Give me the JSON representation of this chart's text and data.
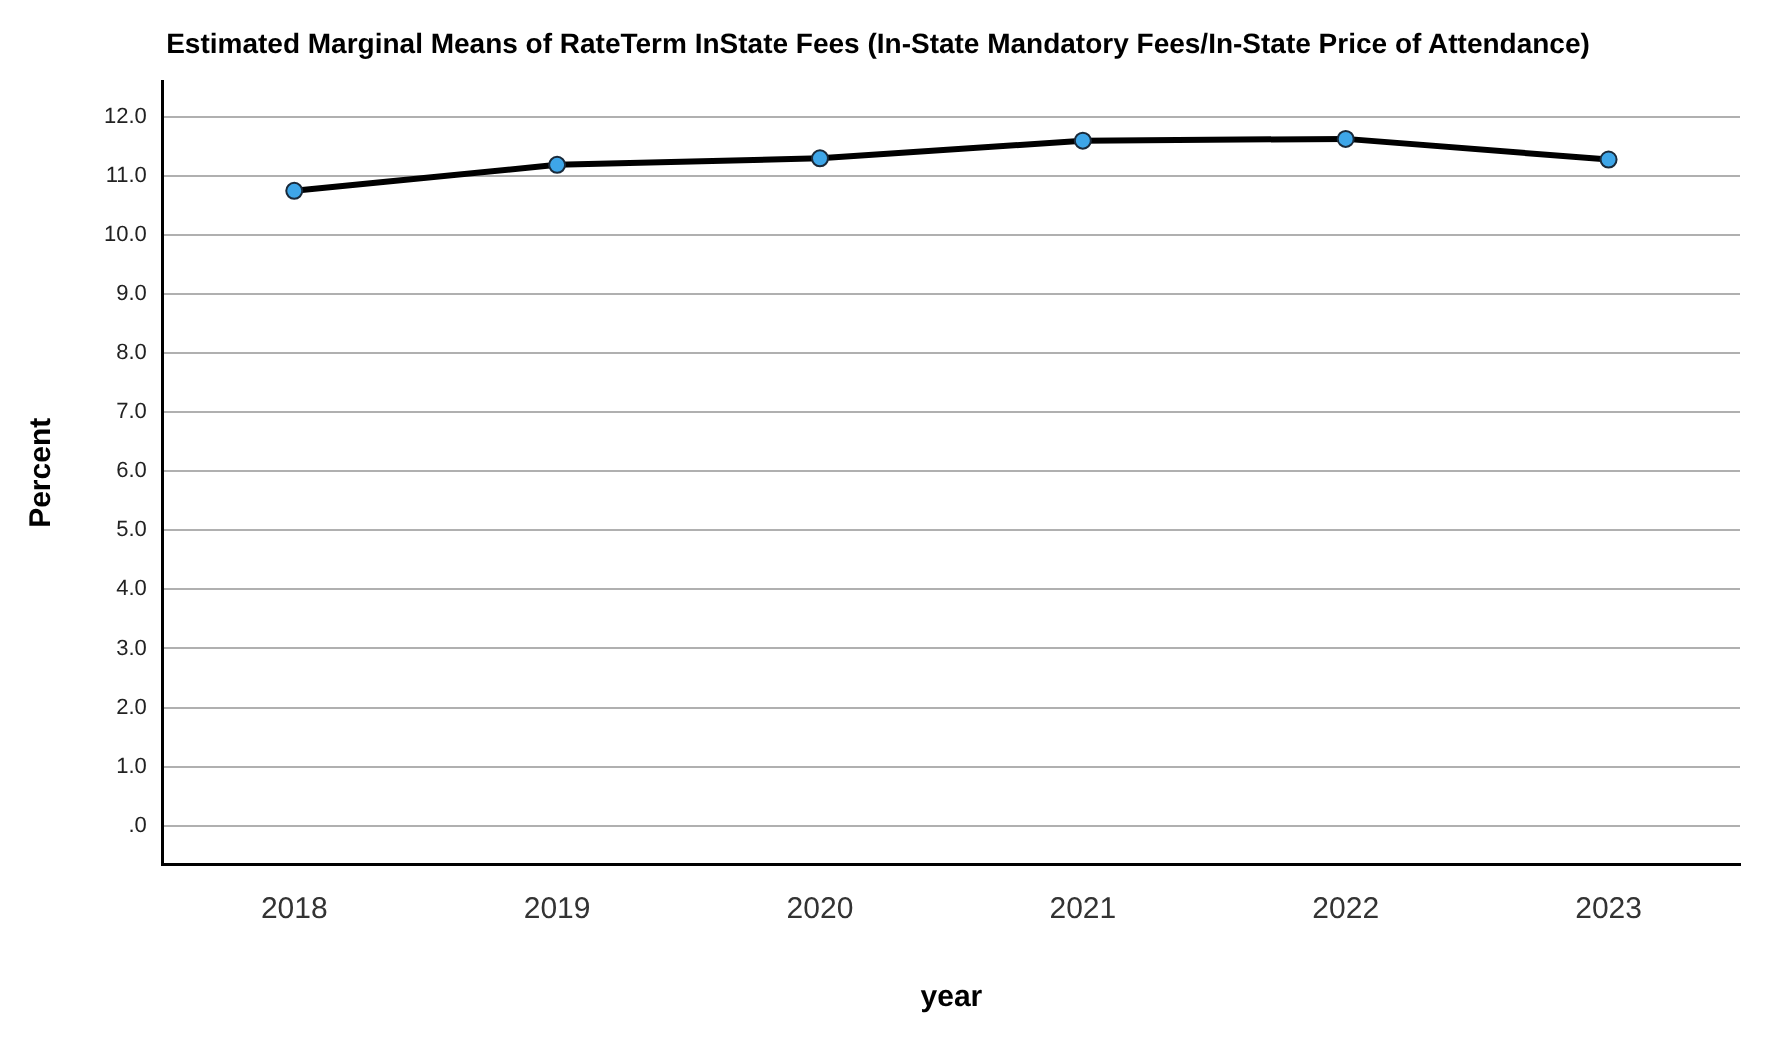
{
  "chart_data": {
    "type": "line",
    "title": "Estimated Marginal Means of RateTerm InState Fees (In-State Mandatory Fees/In-State Price of Attendance)",
    "xlabel": "year",
    "ylabel": "Percent",
    "categories": [
      "2018",
      "2019",
      "2020",
      "2021",
      "2022",
      "2023"
    ],
    "series": [
      {
        "color": "#000000",
        "colors": [
          "#3ea6e8",
          "#3ea6e8",
          "#3ea6e8",
          "#3ea6e8",
          "#3ea6e8",
          "#3ea6e8"
        ],
        "values": [
          10.75,
          11.19,
          11.3,
          11.6,
          11.63,
          11.28
        ]
      }
    ],
    "ylim": [
      -0.65,
      12.6
    ],
    "yticks": [
      {
        "value": 0,
        "label": ".0"
      },
      {
        "value": 1,
        "label": "1.0"
      },
      {
        "value": 2,
        "label": "2.0"
      },
      {
        "value": 3,
        "label": "3.0"
      },
      {
        "value": 4,
        "label": "4.0"
      },
      {
        "value": 5,
        "label": "5.0"
      },
      {
        "value": 6,
        "label": "6.0"
      },
      {
        "value": 7,
        "label": "7.0"
      },
      {
        "value": 8,
        "label": "8.0"
      },
      {
        "value": 9,
        "label": "9.0"
      },
      {
        "value": 10,
        "label": "10.0"
      },
      {
        "value": 11,
        "label": "11.0"
      },
      {
        "value": 12,
        "label": "12.0"
      }
    ],
    "grid": "y",
    "legend": false,
    "marker": "circle",
    "line_style": "solid"
  }
}
